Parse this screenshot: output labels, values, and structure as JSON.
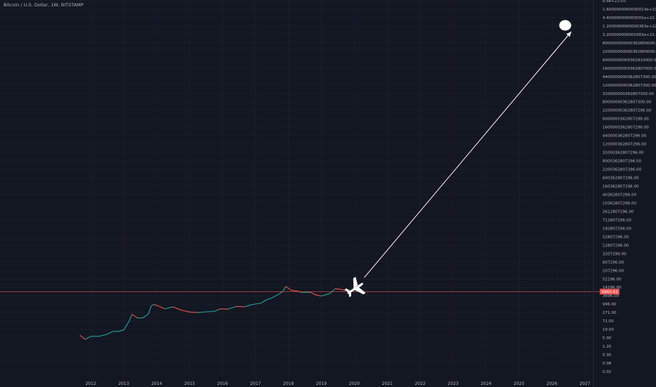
{
  "header": {
    "title": "Bitcoin / U.S. Dollar, 1W, BITSTAMP"
  },
  "colors": {
    "background": "#131722",
    "grid": "#1f2433",
    "up": "#26a69a",
    "down": "#ef5350",
    "price_line": "#ef5350",
    "arrow": "#ffffff",
    "text": "#b2b5be"
  },
  "icons": [
    "airplane-icon",
    "target-ellipse-icon"
  ],
  "chart_data": {
    "type": "line",
    "title": "Bitcoin / U.S. Dollar, 1W, BITSTAMP",
    "xlabel": "",
    "ylabel": "",
    "log_scale": true,
    "grid": true,
    "x_ticks": [
      "2012",
      "2013",
      "2014",
      "2015",
      "2016",
      "2017",
      "2018",
      "2019",
      "2020",
      "2021",
      "2022",
      "2023",
      "2024",
      "2025",
      "2026",
      "2027"
    ],
    "y_ticks": [
      "8.6e+23.00",
      "1.6000000000000013e+23.00",
      "4.400000000000001e+22.00",
      "1.2000000000000363e+22.00",
      "3.200000000000363e+21.00",
      "800000000000362800000.00",
      "220000000000362800000.00",
      "60000000000362810000.00",
      "16000000000362807000.00",
      "4400000000362807300.00",
      "1200000000362807300.00",
      "320000000362807300.00",
      "80000000362807300.00",
      "22000000362807296.00",
      "6000000362807296.00",
      "1600000362807296.00",
      "440000362807296.00",
      "120000362807296.00",
      "32000362807296.00",
      "8000362807296.00",
      "2200362807296.00",
      "600362807296.00",
      "160362807296.00",
      "40362807296.00",
      "10362807296.00",
      "2612807296.00",
      "712807296.00",
      "192807296.00",
      "52807296.00",
      "12807296.00",
      "3207296.00",
      "807296.00",
      "207296.00",
      "52296.00",
      "14296.00",
      "3696.00",
      "996.00",
      "271.00",
      "71.00",
      "19.00",
      "5.00",
      "1.20",
      "0.30",
      "0.08",
      "0.02"
    ],
    "current_price_label": "6860.61",
    "series": [
      {
        "x": [
          "2011-09",
          "2011-11",
          "2012-01",
          "2012-04",
          "2012-07",
          "2012-09",
          "2012-11",
          "2013-01",
          "2013-03",
          "2013-04",
          "2013-06",
          "2013-08",
          "2013-10",
          "2013-11",
          "2013-12",
          "2014-02",
          "2014-04",
          "2014-07",
          "2014-10",
          "2015-01",
          "2015-04",
          "2015-07",
          "2015-10",
          "2015-12",
          "2016-03",
          "2016-06",
          "2016-09",
          "2016-12",
          "2017-03",
          "2017-05",
          "2017-07",
          "2017-09",
          "2017-11",
          "2017-12",
          "2018-02",
          "2018-04",
          "2018-06",
          "2018-09",
          "2018-11",
          "2019-01",
          "2019-04",
          "2019-06",
          "2019-08",
          "2019-10",
          "2019-12"
        ],
        "values": [
          6,
          3,
          5,
          5,
          7,
          11,
          11,
          14,
          60,
          180,
          100,
          100,
          190,
          700,
          900,
          650,
          440,
          600,
          350,
          260,
          240,
          270,
          290,
          430,
          420,
          650,
          610,
          900,
          1100,
          1900,
          2600,
          4200,
          7500,
          17000,
          9000,
          8000,
          6300,
          6500,
          4200,
          3500,
          5200,
          11500,
          10500,
          8500,
          7200
        ]
      }
    ],
    "annotations": [
      {
        "type": "arrow",
        "from_x": "2019-12",
        "from_y": 7200,
        "to_x": "2026-07",
        "to_y": 1.2e+22
      }
    ]
  }
}
